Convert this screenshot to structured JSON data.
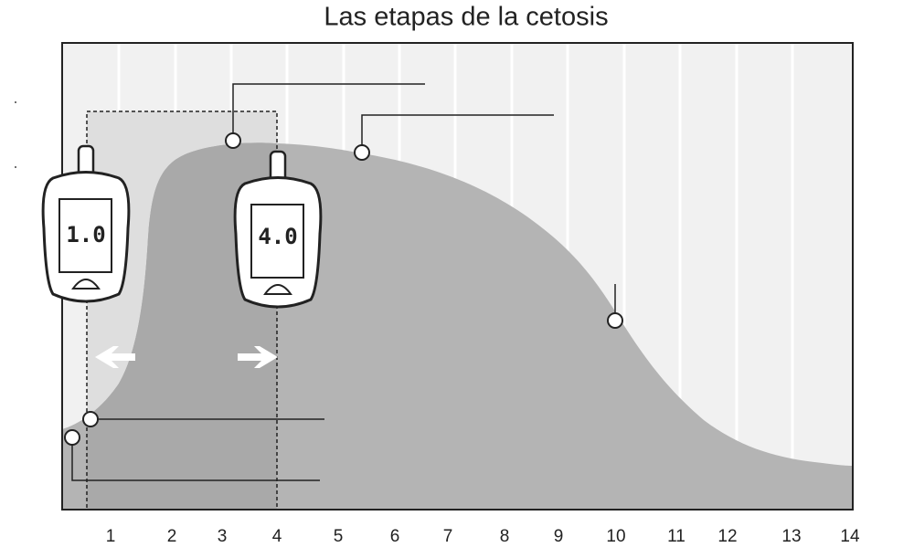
{
  "header": {
    "title": "Las etapas de la cetosis"
  },
  "meters": [
    {
      "reading": "1.0"
    },
    {
      "reading": "4.0"
    }
  ],
  "axis": {
    "labels": [
      "1",
      "2",
      "3",
      "4",
      "5",
      "6",
      "7",
      "8",
      "9",
      "10",
      "11",
      "12",
      "13",
      "14"
    ]
  }
}
